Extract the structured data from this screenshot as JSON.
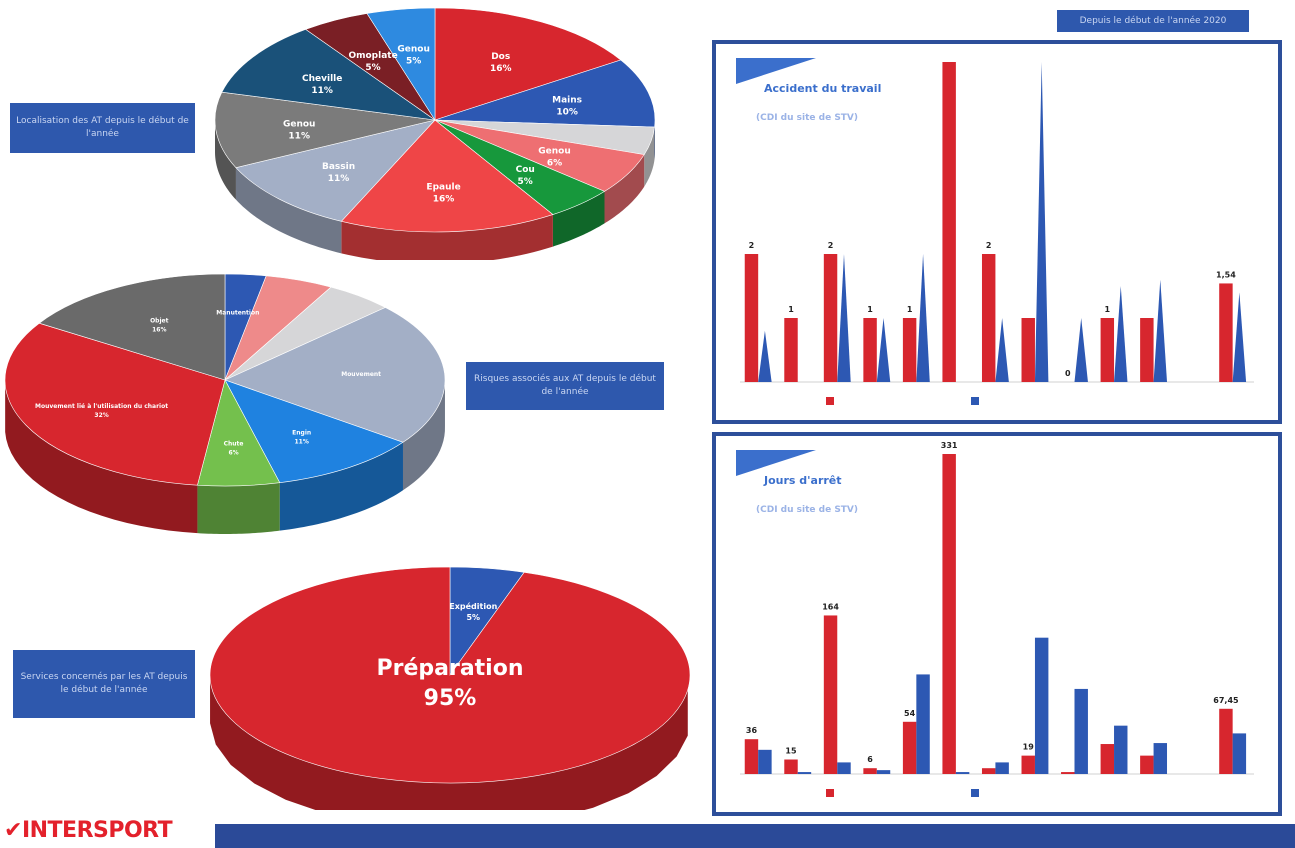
{
  "labels": {
    "localisation": "Localisation des AT depuis le début de l'année",
    "risques": "Risques associés aux AT depuis le début de l'année",
    "services": "Services concernés par les AT depuis le début de l'année",
    "period": "Depuis le début de l'année 2020"
  },
  "logo": {
    "name": "INTERSPORT",
    "tagline": ""
  },
  "colors": {
    "red": "#d7262e",
    "blue": "#2d58b3",
    "navy": "#2b4a98"
  },
  "pies": [
    {
      "id": "localisation",
      "slices": [
        {
          "label": "Dos",
          "value": "16%",
          "pct": 16,
          "color": "#d7262e"
        },
        {
          "label": "Mains",
          "value": "10%",
          "pct": 10,
          "color": "#2d58b3"
        },
        {
          "label": "",
          "value": "",
          "pct": 4,
          "color": "#d6d6d8"
        },
        {
          "label": "Genou",
          "value": "6%",
          "pct": 6,
          "color": "#ee6f72"
        },
        {
          "label": "Cou",
          "value": "5%",
          "pct": 5,
          "color": "#17983c"
        },
        {
          "label": "Epaule",
          "value": "16%",
          "pct": 16,
          "color": "#ef4547"
        },
        {
          "label": "Bassin",
          "value": "11%",
          "pct": 11,
          "color": "#a3afc6"
        },
        {
          "label": "Genou",
          "value": "11%",
          "pct": 11,
          "color": "#7b7b7b"
        },
        {
          "label": "Cheville",
          "value": "11%",
          "pct": 11,
          "color": "#1a5179"
        },
        {
          "label": "Omoplate",
          "value": "5%",
          "pct": 5,
          "color": "#7a1f25"
        },
        {
          "label": "Genou",
          "value": "5%",
          "pct": 5,
          "color": "#2e8ae0"
        }
      ]
    },
    {
      "id": "risques",
      "slices": [
        {
          "label": "Manutention",
          "value": "",
          "pct": 3,
          "color": "#2d58b3"
        },
        {
          "label": "",
          "value": "",
          "pct": 5,
          "color": "#ee8a8a"
        },
        {
          "label": "",
          "value": "",
          "pct": 5,
          "color": "#d6d6d8"
        },
        {
          "label": "Mouvement",
          "value": "",
          "pct": 22,
          "color": "#a3afc6"
        },
        {
          "label": "Engin",
          "value": "11%",
          "pct": 11,
          "color": "#1f82e0"
        },
        {
          "label": "Chute",
          "value": "6%",
          "pct": 6,
          "color": "#74c04d"
        },
        {
          "label": "Mouvement lié à l'utilisation du chariot",
          "value": "32%",
          "pct": 32,
          "color": "#d7262e"
        },
        {
          "label": "Objet",
          "value": "16%",
          "pct": 16,
          "color": "#6a6a6a"
        }
      ]
    },
    {
      "id": "services",
      "slices": [
        {
          "label": "Expédition",
          "value": "5%",
          "pct": 5,
          "color": "#2d58b3"
        },
        {
          "label": "Préparation",
          "value": "95%",
          "pct": 95,
          "color": "#d7262e"
        }
      ]
    }
  ],
  "chart_data": [
    {
      "type": "bar",
      "title": "Accident du travail",
      "subtitle": "(CDI du site de STV)",
      "legend": [
        "",
        ""
      ],
      "legend_position": "bottom",
      "ylim": [
        0,
        5
      ],
      "categories": [
        "",
        "",
        "",
        "",
        "",
        "",
        "",
        "",
        "",
        "",
        "",
        "",
        ""
      ],
      "series": [
        {
          "name": "",
          "values": [
            2,
            1,
            2,
            1,
            1,
            5,
            2,
            1,
            0,
            1,
            1,
            null,
            1.54
          ],
          "labels": [
            "2",
            "1",
            "2",
            "1",
            "1",
            "",
            "2",
            "",
            "0",
            "1",
            "",
            "",
            "1,54"
          ]
        },
        {
          "name": "",
          "values": [
            0.8,
            0,
            2,
            1,
            2,
            0,
            1,
            5,
            1,
            1.5,
            1.6,
            null,
            1.4
          ],
          "labels": [
            "",
            "",
            "",
            "",
            "",
            "",
            "",
            "",
            "",
            "",
            "",
            "",
            ""
          ]
        }
      ]
    },
    {
      "type": "bar",
      "title": "Jours d'arrêt",
      "subtitle": "(CDI du site de STV)",
      "legend": [
        "",
        ""
      ],
      "legend_position": "bottom",
      "ylim": [
        0,
        331
      ],
      "categories": [
        "",
        "",
        "",
        "",
        "",
        "",
        "",
        "",
        "",
        "",
        "",
        "",
        ""
      ],
      "series": [
        {
          "name": "",
          "values": [
            36,
            15,
            164,
            6,
            54,
            331,
            6,
            19,
            2,
            31,
            19,
            null,
            67.45
          ],
          "labels": [
            "36",
            "15",
            "164",
            "6",
            "54",
            "331",
            "",
            "19",
            "",
            "",
            "",
            "",
            "67,45"
          ]
        },
        {
          "name": "",
          "values": [
            25,
            2,
            12,
            4,
            103,
            2,
            12,
            141,
            88,
            50,
            32,
            null,
            42
          ],
          "labels": [
            "",
            "",
            "",
            "",
            "",
            "",
            "",
            "",
            "",
            "",
            "",
            "",
            ""
          ]
        }
      ]
    }
  ]
}
